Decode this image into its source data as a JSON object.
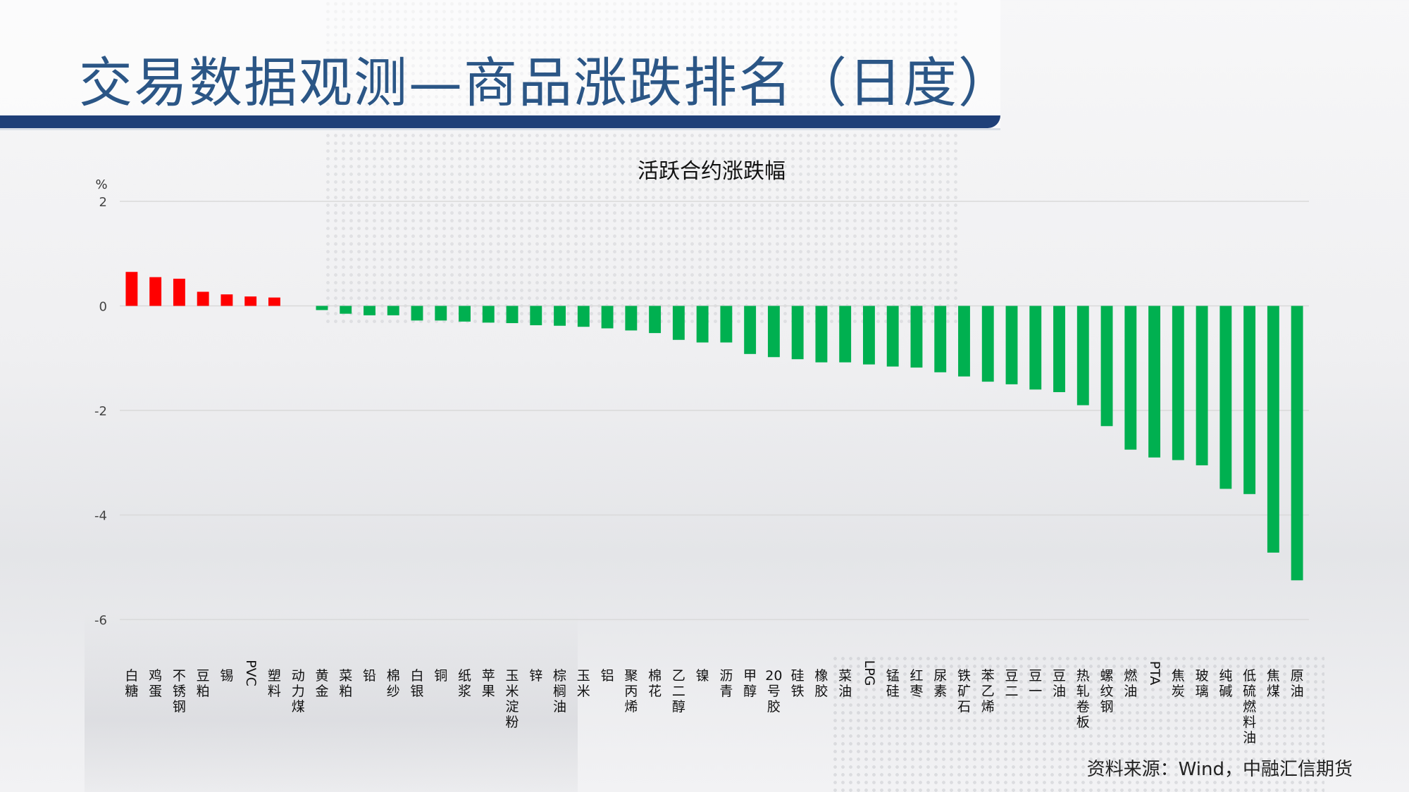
{
  "page_title": "交易数据观测—商品涨跌排名（日度）",
  "source": "资料来源：Wind，中融汇信期货",
  "colors": {
    "rise": "#ff0000",
    "fall": "#00b050",
    "grid": "#d9d9d9",
    "title_blue": "#2b5686",
    "band": "#1f3f78"
  },
  "chart_data": {
    "type": "bar",
    "title": "活跃合约涨跌幅",
    "ylabel": "%",
    "ylim": [
      -6,
      2
    ],
    "yticks": [
      2,
      0,
      -2,
      -4,
      -6
    ],
    "grid": true,
    "categories": [
      "白糖",
      "鸡蛋",
      "不锈钢",
      "豆粕",
      "锡",
      "PVC",
      "塑料",
      "动力煤",
      "黄金",
      "菜粕",
      "铅",
      "棉纱",
      "白银",
      "铜",
      "纸浆",
      "苹果",
      "玉米淀粉",
      "锌",
      "棕榈油",
      "玉米",
      "铝",
      "聚丙烯",
      "棉花",
      "乙二醇",
      "镍",
      "沥青",
      "甲醇",
      "20号胶",
      "硅铁",
      "橡胶",
      "菜油",
      "LPG",
      "锰硅",
      "红枣",
      "尿素",
      "铁矿石",
      "苯乙烯",
      "豆二",
      "豆一",
      "豆油",
      "热轧卷板",
      "螺纹钢",
      "燃油",
      "PTA",
      "焦炭",
      "玻璃",
      "纯碱",
      "低硫燃料油",
      "焦煤",
      "原油"
    ],
    "values": [
      0.65,
      0.55,
      0.52,
      0.27,
      0.22,
      0.18,
      0.16,
      0.0,
      -0.08,
      -0.15,
      -0.18,
      -0.18,
      -0.28,
      -0.28,
      -0.3,
      -0.32,
      -0.33,
      -0.37,
      -0.38,
      -0.4,
      -0.43,
      -0.47,
      -0.52,
      -0.65,
      -0.7,
      -0.7,
      -0.92,
      -0.98,
      -1.02,
      -1.08,
      -1.08,
      -1.12,
      -1.16,
      -1.18,
      -1.27,
      -1.35,
      -1.45,
      -1.5,
      -1.6,
      -1.65,
      -1.9,
      -2.3,
      -2.75,
      -2.9,
      -2.95,
      -3.05,
      -3.5,
      -3.6,
      -4.72,
      -5.25
    ]
  }
}
